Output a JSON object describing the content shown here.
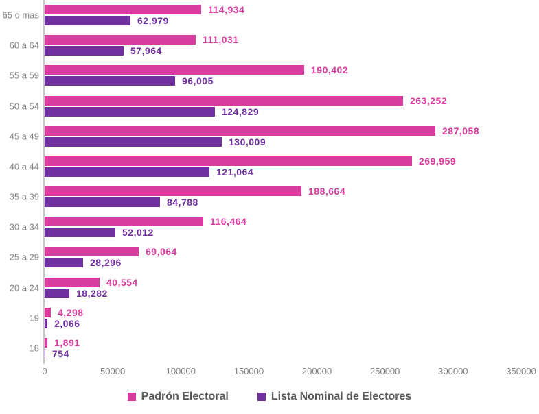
{
  "chart_data": {
    "type": "bar",
    "orientation": "horizontal",
    "title": "",
    "xlabel": "",
    "ylabel": "",
    "categories": [
      "65 o mas",
      "60 a 64",
      "55 a 59",
      "50 a 54",
      "45 a 49",
      "40 a 44",
      "35 a 39",
      "30 a 34",
      "25 a 29",
      "20 a 24",
      "19",
      "18"
    ],
    "series": [
      {
        "name": "Padrón Electoral",
        "color": "#d93b9e",
        "values": [
          114934,
          111031,
          190402,
          263252,
          287058,
          269959,
          188664,
          116464,
          69064,
          40554,
          4298,
          1891
        ],
        "labels": [
          "114,934",
          "111,031",
          "190,402",
          "263,252",
          "287,058",
          "269,959",
          "188,664",
          "116,464",
          "69,064",
          "40,554",
          "4,298",
          "1,891"
        ]
      },
      {
        "name": "Lista Nominal de Electores",
        "color": "#7030a0",
        "values": [
          62979,
          57964,
          96005,
          124829,
          130009,
          121064,
          84788,
          52012,
          28296,
          18282,
          2066,
          754
        ],
        "labels": [
          "62,979",
          "57,964",
          "96,005",
          "124,829",
          "130,009",
          "121,064",
          "84,788",
          "52,012",
          "28,296",
          "18,282",
          "2,066",
          "754"
        ]
      }
    ],
    "xlim": [
      0,
      350000
    ],
    "x_ticks": [
      "0",
      "50000",
      "100000",
      "150000",
      "200000",
      "250000",
      "300000",
      "350000"
    ],
    "grid": false,
    "legend_position": "bottom",
    "axis_line_color": "#c6c6c6",
    "tick_label_color": "#808080",
    "category_label_color": "#808080",
    "legend_text_color": "#595959",
    "data_labels_visible": true
  }
}
